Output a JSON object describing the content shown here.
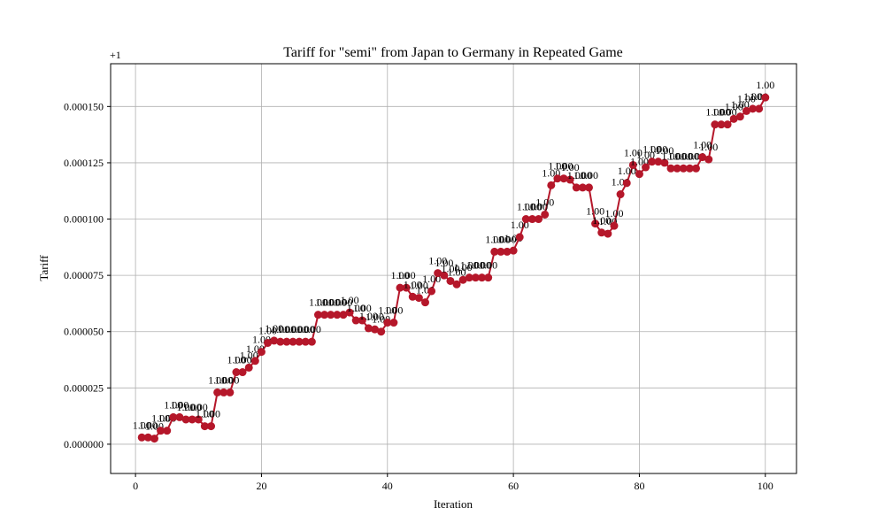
{
  "chart_data": {
    "type": "line",
    "title": "Tariff for \"semi\" from Japan to Germany in Repeated Game",
    "x_label": "Iteration",
    "y_label": "Tariff",
    "y_offset_label": "+1",
    "color": "#b5172a",
    "grid": true,
    "x": [
      1,
      2,
      3,
      4,
      5,
      6,
      7,
      8,
      9,
      10,
      11,
      12,
      13,
      14,
      15,
      16,
      17,
      18,
      19,
      20,
      21,
      22,
      23,
      24,
      25,
      26,
      27,
      28,
      29,
      30,
      31,
      32,
      33,
      34,
      35,
      36,
      37,
      38,
      39,
      40,
      41,
      42,
      43,
      44,
      45,
      46,
      47,
      48,
      49,
      50,
      51,
      52,
      53,
      54,
      55,
      56,
      57,
      58,
      59,
      60,
      61,
      62,
      63,
      64,
      65,
      66,
      67,
      68,
      69,
      70,
      71,
      72,
      73,
      74,
      75,
      76,
      77,
      78,
      79,
      80,
      81,
      82,
      83,
      84,
      85,
      86,
      87,
      88,
      89,
      90,
      91,
      92,
      93,
      94,
      95,
      96,
      97,
      98,
      99,
      100
    ],
    "values": [
      3e-06,
      3e-06,
      2.5e-06,
      6e-06,
      6e-06,
      1.2e-05,
      1.2e-05,
      1.1e-05,
      1.1e-05,
      1.1e-05,
      8e-06,
      8e-06,
      2.3e-05,
      2.3e-05,
      2.3e-05,
      3.2e-05,
      3.2e-05,
      3.4e-05,
      3.7e-05,
      4.1e-05,
      4.5e-05,
      4.6e-05,
      4.55e-05,
      4.55e-05,
      4.55e-05,
      4.55e-05,
      4.55e-05,
      4.55e-05,
      5.75e-05,
      5.75e-05,
      5.75e-05,
      5.75e-05,
      5.75e-05,
      5.85e-05,
      5.5e-05,
      5.5e-05,
      5.15e-05,
      5.1e-05,
      5e-05,
      5.4e-05,
      5.4e-05,
      6.95e-05,
      6.95e-05,
      6.55e-05,
      6.5e-05,
      6.3e-05,
      6.8e-05,
      7.6e-05,
      7.5e-05,
      7.25e-05,
      7.1e-05,
      7.3e-05,
      7.4e-05,
      7.4e-05,
      7.4e-05,
      7.4e-05,
      8.55e-05,
      8.55e-05,
      8.55e-05,
      8.6e-05,
      9.2e-05,
      0.0001,
      0.0001,
      0.0001,
      0.000102,
      0.000115,
      0.000118,
      0.000118,
      0.0001175,
      0.000114,
      0.000114,
      0.000114,
      9.8e-05,
      9.4e-05,
      9.35e-05,
      9.7e-05,
      0.000111,
      0.000116,
      0.000124,
      0.00012,
      0.000123,
      0.0001255,
      0.0001255,
      0.000125,
      0.0001225,
      0.0001225,
      0.0001225,
      0.0001225,
      0.0001225,
      0.0001275,
      0.0001265,
      0.000142,
      0.000142,
      0.000142,
      0.0001445,
      0.0001455,
      0.000148,
      0.000149,
      0.000149,
      0.000154
    ],
    "value_labels": [
      "1.00",
      "1.00",
      "1.00",
      "1.00",
      "1.00",
      "1.00",
      "1.00",
      "1.00",
      "1.00",
      "1.00",
      "1.00",
      "1.00",
      "1.00",
      "1.00",
      "1.00",
      "1.00",
      "1.00",
      "1.00",
      "1.00",
      "1.00",
      "1.00",
      "1.00",
      "1.00",
      "1.00",
      "1.00",
      "1.00",
      "1.00",
      "1.00",
      "1.00",
      "1.00",
      "1.00",
      "1.00",
      "1.00",
      "1.00",
      "1.00",
      "1.00",
      "1.00",
      "1.00",
      "1.00",
      "1.00",
      "1.00",
      "1.00",
      "1.00",
      "1.00",
      "1.00",
      "1.00",
      "1.00",
      "1.00",
      "1.00",
      "1.00",
      "1.00",
      "1.00",
      "1.00",
      "1.00",
      "1.00",
      "1.00",
      "1.00",
      "1.00",
      "1.00",
      "1.00",
      "1.00",
      "1.00",
      "1.00",
      "1.00",
      "1.00",
      "1.00",
      "1.00",
      "1.00",
      "1.00",
      "1.00",
      "1.00",
      "1.00",
      "1.00",
      "1.00",
      "1.00",
      "1.00",
      "1.00",
      "1.00",
      "1.00",
      "1.00",
      "1.00",
      "1.00",
      "1.00",
      "1.00",
      "1.00",
      "1.00",
      "1.00",
      "1.00",
      "1.00",
      "1.00",
      "1.00",
      "1.00",
      "1.00",
      "1.00",
      "1.00",
      "1.00",
      "1.00",
      "1.00",
      "1.00",
      "1.00"
    ],
    "xlim": [
      -3.95,
      104.95
    ],
    "xticks": [
      0,
      20,
      40,
      60,
      80,
      100
    ],
    "ylim": [
      -1.3e-05,
      0.000169
    ],
    "yticks": [
      {
        "value": 0,
        "label": "0.000000"
      },
      {
        "value": 2.5e-05,
        "label": "0.000025"
      },
      {
        "value": 5e-05,
        "label": "0.000050"
      },
      {
        "value": 7.5e-05,
        "label": "0.000075"
      },
      {
        "value": 0.0001,
        "label": "0.000100"
      },
      {
        "value": 0.000125,
        "label": "0.000125"
      },
      {
        "value": 0.00015,
        "label": "0.000150"
      }
    ]
  }
}
